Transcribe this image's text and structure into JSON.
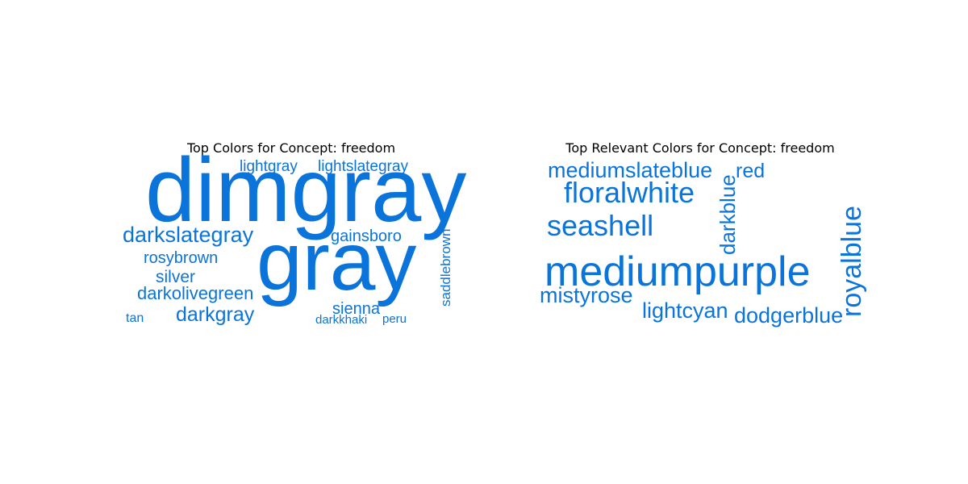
{
  "chart_data": [
    {
      "type": "wordcloud",
      "title": "Top Colors for Concept: freedom",
      "color": "#0a74da",
      "words": [
        {
          "text": "dimgray",
          "size": 100
        },
        {
          "text": "gray",
          "size": 92
        },
        {
          "text": "darkslategray",
          "size": 26
        },
        {
          "text": "darkgray",
          "size": 24
        },
        {
          "text": "darkolivegreen",
          "size": 21
        },
        {
          "text": "silver",
          "size": 20
        },
        {
          "text": "gainsboro",
          "size": 19
        },
        {
          "text": "rosybrown",
          "size": 19
        },
        {
          "text": "sienna",
          "size": 18
        },
        {
          "text": "lightgray",
          "size": 18
        },
        {
          "text": "lightslategray",
          "size": 18
        },
        {
          "text": "saddlebrown",
          "size": 16
        },
        {
          "text": "tan",
          "size": 16
        },
        {
          "text": "darkkhaki",
          "size": 15
        },
        {
          "text": "peru",
          "size": 15
        }
      ]
    },
    {
      "type": "wordcloud",
      "title": "Top Relevant Colors for Concept: freedom",
      "color": "#0a74da",
      "words": [
        {
          "text": "mediumpurple",
          "size": 50
        },
        {
          "text": "seashell",
          "size": 35
        },
        {
          "text": "floralwhite",
          "size": 35
        },
        {
          "text": "royalblue",
          "size": 32
        },
        {
          "text": "mistyrose",
          "size": 26
        },
        {
          "text": "mediumslateblue",
          "size": 26
        },
        {
          "text": "lightcyan",
          "size": 26
        },
        {
          "text": "dodgerblue",
          "size": 26
        },
        {
          "text": "darkblue",
          "size": 25
        },
        {
          "text": "red",
          "size": 24
        }
      ]
    }
  ]
}
